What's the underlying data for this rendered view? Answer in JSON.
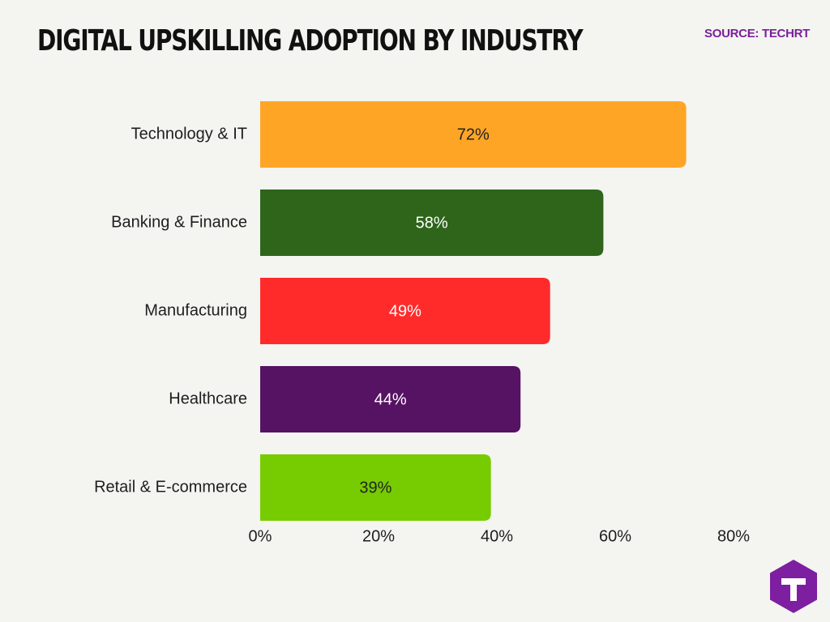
{
  "title": "DIGITAL UPSKILLING ADOPTION BY INDUSTRY",
  "source": "SOURCE: TECHRT",
  "colors": {
    "background": "#f4f4f1",
    "source_text": "#7a1f9a",
    "logo": "#7d1fa0",
    "bar_label_dark": "#222222",
    "bar_label_light": "#ffffff"
  },
  "logo": {
    "icon": "techrt-logo-icon",
    "letter": "T"
  },
  "chart_data": {
    "type": "bar",
    "orientation": "horizontal",
    "categories": [
      "Technology & IT",
      "Banking & Finance",
      "Manufacturing",
      "Healthcare",
      "Retail & E-commerce"
    ],
    "values": [
      72,
      58,
      49,
      44,
      39
    ],
    "value_labels": [
      "72%",
      "58%",
      "49%",
      "44%",
      "39%"
    ],
    "bar_colors": [
      "#ffa526",
      "#2e651b",
      "#ff2b2b",
      "#561263",
      "#76cc00"
    ],
    "xlim": [
      0,
      80
    ],
    "xticks": [
      0,
      20,
      40,
      60,
      80
    ],
    "xtick_labels": [
      "0%",
      "20%",
      "40%",
      "60%",
      "80%"
    ],
    "xlabel": "",
    "ylabel": "",
    "grid": false,
    "legend": "none"
  }
}
